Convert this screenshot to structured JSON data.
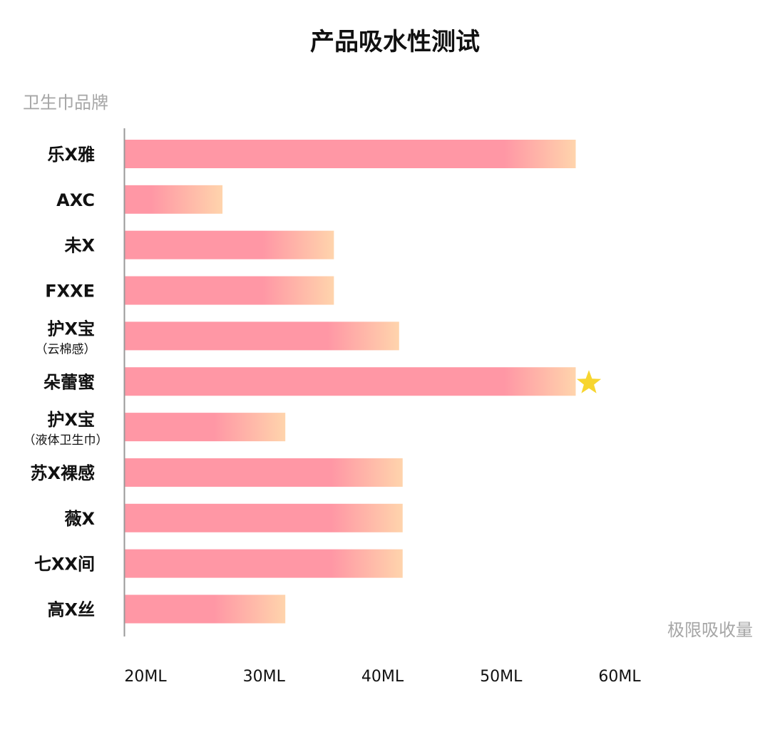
{
  "chart_data": {
    "type": "bar",
    "orientation": "horizontal",
    "title": "产品吸水性测试",
    "ylabel": "卫生巾品牌",
    "xlabel": "极限吸收量",
    "xlim": [
      20,
      60
    ],
    "ticks": [
      "20ML",
      "30ML",
      "40ML",
      "50ML",
      "60ML"
    ],
    "categories": [
      {
        "label": "乐X雅",
        "sub": "",
        "value": 56.3
      },
      {
        "label": "AXC",
        "sub": "",
        "value": 26.5
      },
      {
        "label": "未X",
        "sub": "",
        "value": 35.9
      },
      {
        "label": "FXXE",
        "sub": "",
        "value": 35.9
      },
      {
        "label": "护X宝",
        "sub": "（云棉感）",
        "value": 41.4
      },
      {
        "label": "朵蕾蜜",
        "sub": "",
        "value": 56.3,
        "highlight": true
      },
      {
        "label": "护X宝",
        "sub": "（液体卫生巾）",
        "value": 31.8
      },
      {
        "label": "苏X裸感",
        "sub": "",
        "value": 41.7
      },
      {
        "label": "薇X",
        "sub": "",
        "value": 41.7
      },
      {
        "label": "七XX间",
        "sub": "",
        "value": 41.7
      },
      {
        "label": "高X丝",
        "sub": "",
        "value": 31.8
      }
    ],
    "highlight_marker": "star-icon",
    "colors": {
      "bar_start": "#ff97a5",
      "bar_end": "#ffd4ac",
      "highlight_label": "#f47588",
      "star": "#f7d52f",
      "axis": "#999999",
      "muted": "#a6a6a6"
    }
  }
}
